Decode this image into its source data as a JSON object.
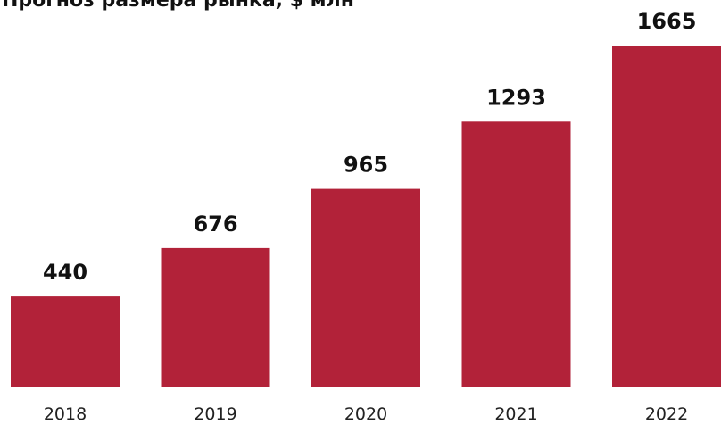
{
  "chart_data": {
    "type": "bar",
    "title": "Прогноз размера рынка, $ млн",
    "categories": [
      "2018",
      "2019",
      "2020",
      "2021",
      "2022"
    ],
    "values": [
      440,
      676,
      965,
      1293,
      1665
    ],
    "value_labels": [
      "440",
      "676",
      "965",
      "1293",
      "1665"
    ],
    "ylim": [
      0,
      1800
    ],
    "grid": false,
    "bar_color": "#B22239",
    "xlabel": "",
    "ylabel": ""
  }
}
